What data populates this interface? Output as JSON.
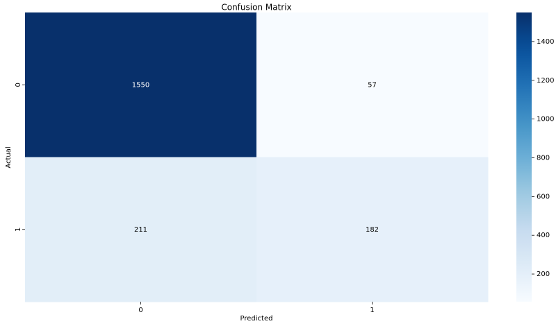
{
  "chart_data": {
    "type": "heatmap",
    "title": "Confusion Matrix",
    "x_label": "Predicted",
    "y_label": "Actual",
    "x_categories": [
      "0",
      "1"
    ],
    "y_categories": [
      "0",
      "1"
    ],
    "values": [
      [
        1550,
        57
      ],
      [
        211,
        182
      ]
    ],
    "colormap": "Blues",
    "colorbar": {
      "lim": [
        57,
        1550
      ],
      "ticks": [
        200,
        400,
        600,
        800,
        1000,
        1200,
        1400
      ]
    }
  }
}
